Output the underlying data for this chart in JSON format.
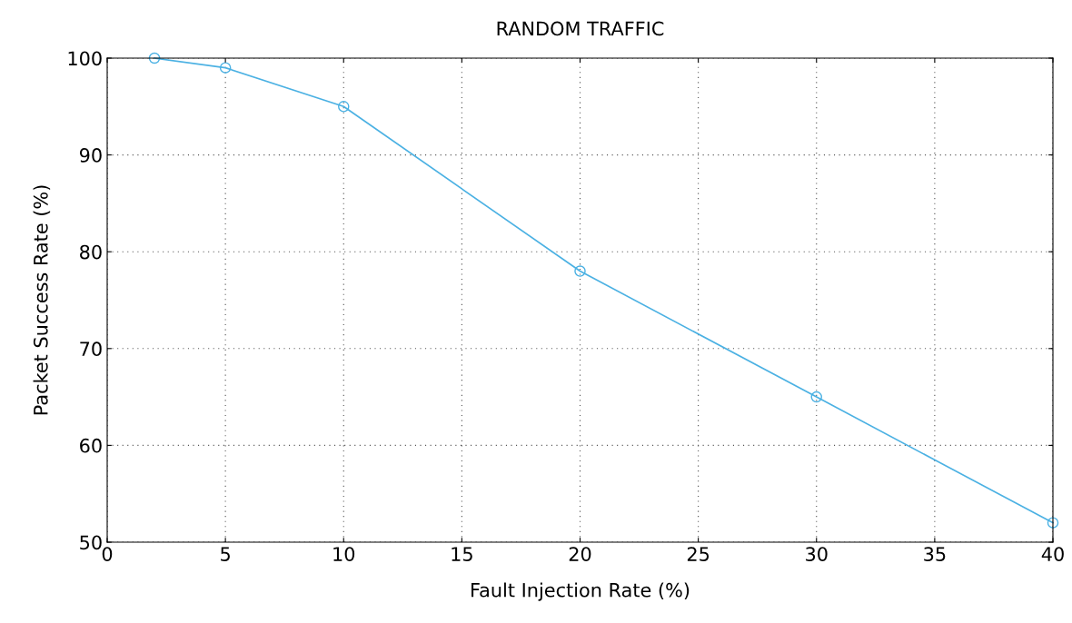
{
  "chart_data": {
    "type": "line",
    "title": "RANDOM TRAFFIC",
    "xlabel": "Fault Injection Rate (%)",
    "ylabel": "Packet Success Rate (%)",
    "x": [
      2,
      5,
      10,
      20,
      30,
      40
    ],
    "series": [
      {
        "color": "#4bb1e3",
        "values": [
          100,
          99,
          95,
          78,
          65,
          52
        ]
      }
    ],
    "xlim": [
      0,
      40
    ],
    "xticks": [
      0,
      5,
      10,
      15,
      20,
      25,
      30,
      35,
      40
    ],
    "ylim": [
      50,
      100
    ],
    "yticks": [
      50,
      60,
      70,
      80,
      90,
      100
    ],
    "grid": true,
    "marker": "circle",
    "line_style": "solid"
  }
}
